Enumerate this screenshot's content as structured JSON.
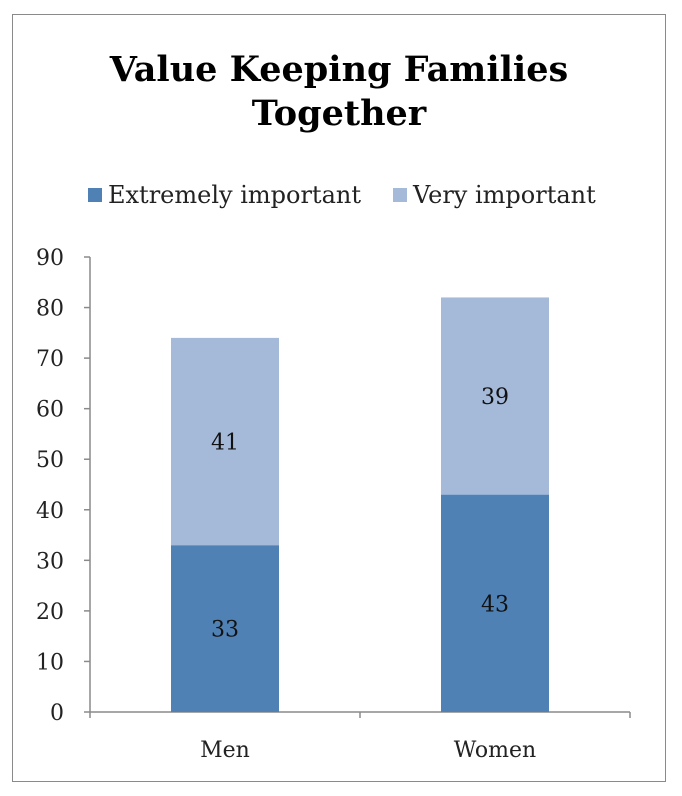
{
  "chart_data": {
    "type": "bar",
    "stacked": true,
    "title": "Value Keeping Families Together",
    "title_lines": [
      "Value Keeping Families",
      "Together"
    ],
    "categories": [
      "Men",
      "Women"
    ],
    "series": [
      {
        "name": "Extremely important",
        "values": [
          33,
          43
        ],
        "color": "#4f81b5"
      },
      {
        "name": "Very important",
        "values": [
          41,
          39
        ],
        "color": "#a5b9d9"
      }
    ],
    "ylim": [
      0,
      90
    ],
    "yticks": [
      0,
      10,
      20,
      30,
      40,
      50,
      60,
      70,
      80,
      90
    ],
    "xlabel": "",
    "ylabel": "",
    "grid": false,
    "legend_position": "top"
  }
}
